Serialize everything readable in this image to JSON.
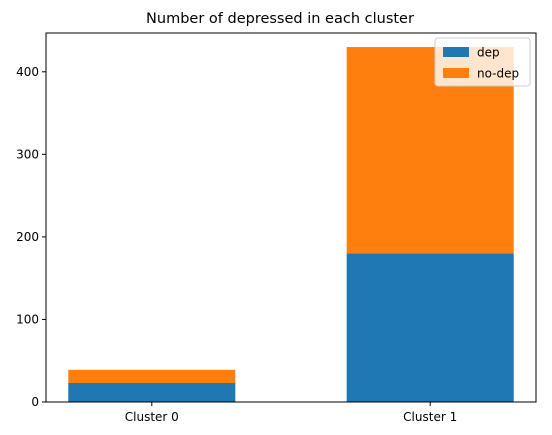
{
  "chart_data": {
    "type": "bar",
    "stacked": true,
    "title": "Number of depressed in each cluster",
    "xlabel": "",
    "ylabel": "",
    "categories": [
      "Cluster 0",
      "Cluster 1"
    ],
    "series": [
      {
        "name": "dep",
        "values": [
          23,
          180
        ],
        "color": "#1f77b4"
      },
      {
        "name": "no-dep",
        "values": [
          16,
          250
        ],
        "color": "#ff7f0e"
      }
    ],
    "ylim": [
      0,
      447
    ],
    "yticks": [
      0,
      100,
      200,
      300,
      400
    ],
    "grid": false,
    "legend_position": "top-right"
  }
}
